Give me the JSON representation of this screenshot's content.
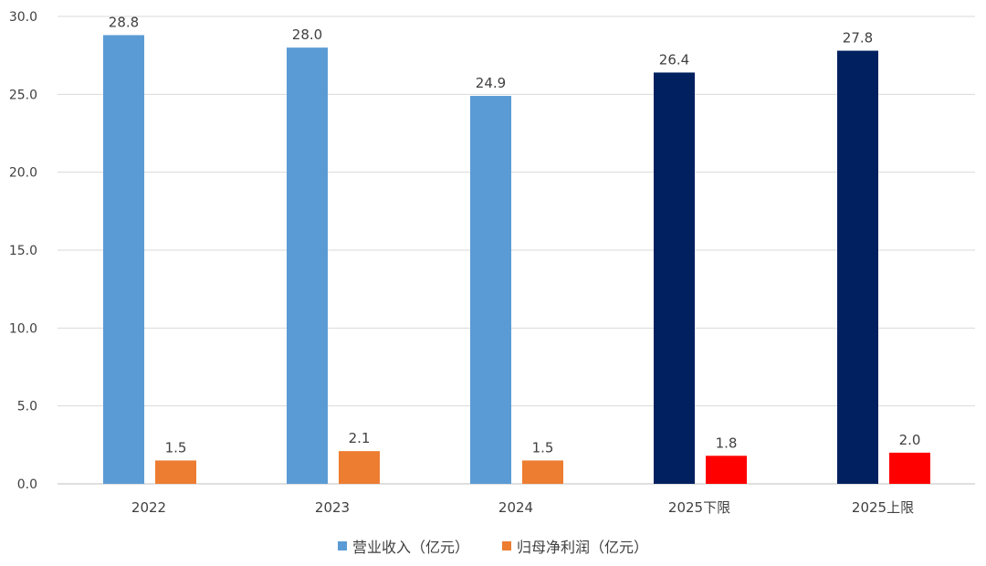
{
  "chart_data": {
    "type": "bar",
    "categories": [
      "2022",
      "2023",
      "2024",
      "2025下限",
      "2025上限"
    ],
    "series": [
      {
        "name": "营业收入（亿元）",
        "values": [
          28.8,
          28.0,
          24.9,
          26.4,
          27.8
        ],
        "labels": [
          "28.8",
          "28.0",
          "24.9",
          "26.4",
          "27.8"
        ],
        "colors": [
          "#5b9bd5",
          "#5b9bd5",
          "#5b9bd5",
          "#002060",
          "#002060"
        ]
      },
      {
        "name": "归母净利润（亿元）",
        "values": [
          1.5,
          2.1,
          1.5,
          1.8,
          2.0
        ],
        "labels": [
          "1.5",
          "2.1",
          "1.5",
          "1.8",
          "2.0"
        ],
        "colors": [
          "#ed7d31",
          "#ed7d31",
          "#ed7d31",
          "#ff0000",
          "#ff0000"
        ]
      }
    ],
    "ylim": [
      0,
      30
    ],
    "yticks": [
      "0.0",
      "5.0",
      "10.0",
      "15.0",
      "20.0",
      "25.0",
      "30.0"
    ],
    "grid": true,
    "legend_position": "bottom",
    "legend_colors": [
      "#5b9bd5",
      "#ed7d31"
    ]
  }
}
